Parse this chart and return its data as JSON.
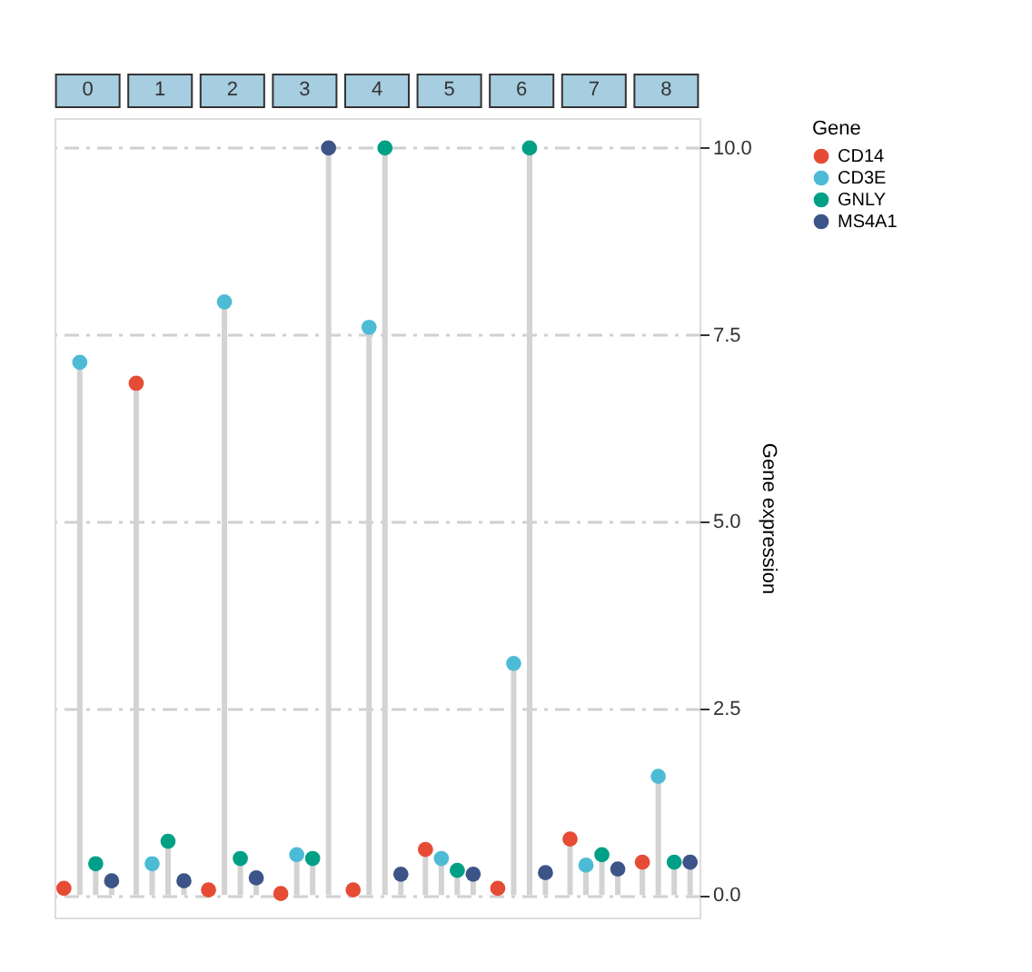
{
  "chart_data": {
    "type": "lollipop",
    "ylabel": "Gene expression",
    "legend_title": "Gene",
    "legend": "right",
    "grid": "y",
    "marker": "circle",
    "categories": [
      "0",
      "1",
      "2",
      "3",
      "4",
      "5",
      "6",
      "7",
      "8"
    ],
    "series": [
      {
        "name": "CD14",
        "color": "#e64b35",
        "values": [
          0.09,
          6.85,
          0.07,
          0.02,
          0.07,
          0.61,
          0.09,
          0.75,
          0.44
        ]
      },
      {
        "name": "CD3E",
        "color": "#4dbbd5",
        "values": [
          7.13,
          0.42,
          7.94,
          0.54,
          7.6,
          0.49,
          3.1,
          0.4,
          1.59
        ]
      },
      {
        "name": "GNLY",
        "color": "#00a087",
        "values": [
          0.42,
          0.72,
          0.49,
          0.49,
          10,
          0.33,
          10,
          0.54,
          0.44
        ]
      },
      {
        "name": "MS4A1",
        "color": "#3c5488",
        "values": [
          0.19,
          0.19,
          0.23,
          10,
          0.28,
          0.28,
          0.3,
          0.35,
          0.44
        ]
      }
    ],
    "ylim": [
      -0.3,
      10.4
    ],
    "yticks": [
      {
        "value": 0,
        "label": "0.0"
      },
      {
        "value": 2.5,
        "label": "2.5"
      },
      {
        "value": 5,
        "label": "5.0"
      },
      {
        "value": 7.5,
        "label": "7.5"
      },
      {
        "value": 10,
        "label": "10.0"
      }
    ]
  }
}
